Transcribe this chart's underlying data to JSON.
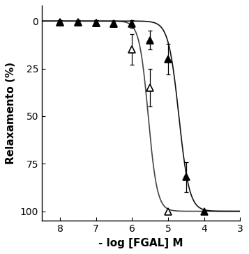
{
  "title": "",
  "xlabel": "- log [FGAL] M",
  "ylabel": "Relaxamento (%)",
  "xlim": [
    8.5,
    3.0
  ],
  "ylim": [
    105,
    -8
  ],
  "xticks": [
    8,
    7,
    6,
    5,
    4,
    3
  ],
  "yticks": [
    0,
    25,
    50,
    75,
    100
  ],
  "open_triangle": {
    "x": [
      8.0,
      7.5,
      7.0,
      6.5,
      6.0,
      5.5,
      5.0
    ],
    "y": [
      0.5,
      0.5,
      1.0,
      1.5,
      15,
      35,
      100
    ],
    "yerr": [
      1.0,
      1.0,
      1.5,
      1.5,
      8,
      10,
      0
    ]
  },
  "filled_triangle": {
    "x": [
      8.0,
      7.5,
      7.0,
      6.5,
      6.0,
      5.5,
      5.0,
      4.5,
      4.0
    ],
    "y": [
      0.5,
      0.5,
      1.0,
      1.5,
      1.5,
      10,
      20,
      82,
      100
    ],
    "yerr": [
      1.0,
      1.0,
      1.5,
      1.5,
      2.0,
      5,
      8,
      8,
      0
    ]
  },
  "open_ec50_neglog": 5.55,
  "open_hill": 3.5,
  "filled_ec50_neglog": 4.7,
  "filled_hill": 3.0,
  "open_color": "#444444",
  "filled_color": "#111111",
  "bg_color": "#ffffff",
  "marker_size": 7,
  "linewidth": 1.2
}
